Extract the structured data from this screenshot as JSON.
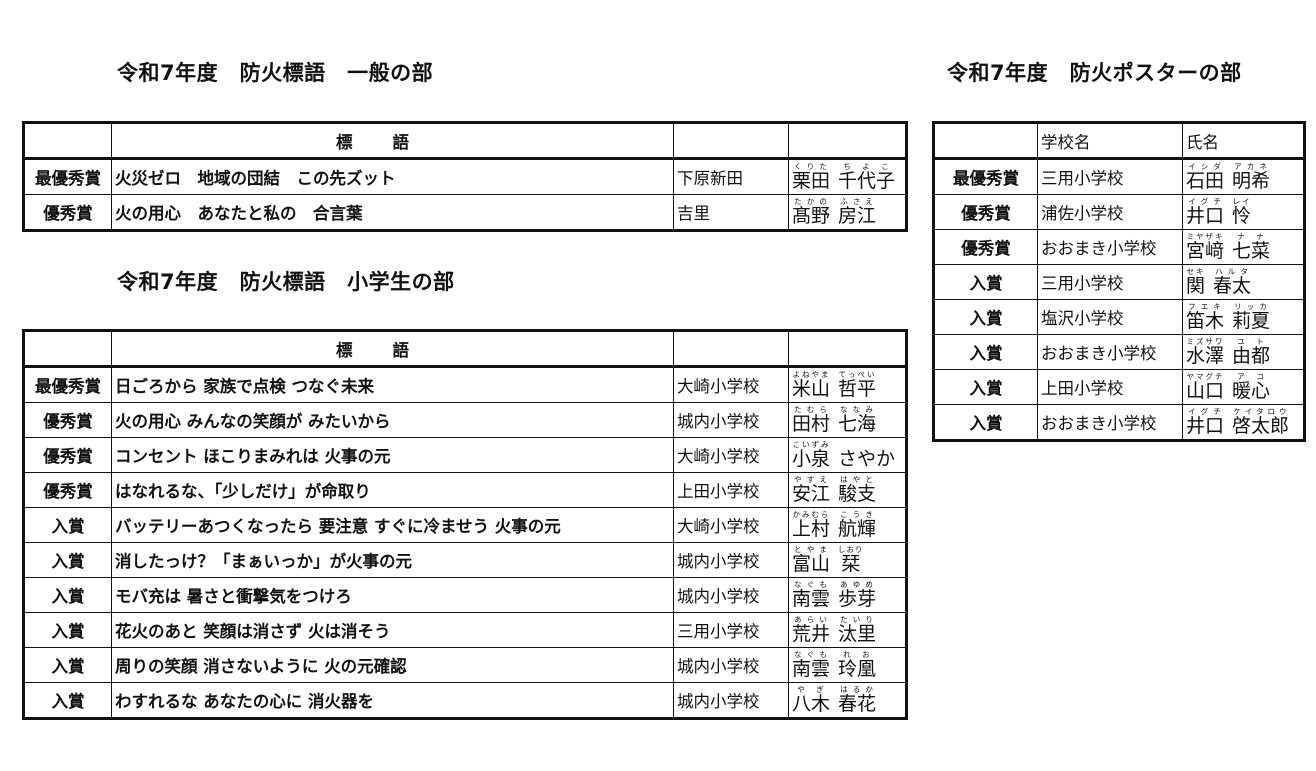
{
  "general": {
    "title": "令和7年度　防火標語　一般の部",
    "header": {
      "award": "",
      "slogan": "標語",
      "place": "",
      "name": ""
    },
    "rows": [
      {
        "award": "最優秀賞",
        "slogan": "火災ゼロ　地域の団結　この先ズット",
        "place": "下原新田",
        "surname": "栗田",
        "surname_ruby": "くりた",
        "given": "千代子",
        "given_ruby": "ちよこ"
      },
      {
        "award": "優秀賞",
        "slogan": "火の用心　あなたと私の　合言葉",
        "place": "吉里",
        "surname": "髙野",
        "surname_ruby": "たかの",
        "given": "房江",
        "given_ruby": "ふさえ"
      }
    ]
  },
  "elementary": {
    "title": "令和7年度　防火標語　小学生の部",
    "header": {
      "award": "",
      "slogan": "標語",
      "place": "",
      "name": ""
    },
    "rows": [
      {
        "award": "最優秀賞",
        "slogan": "日ごろから  家族で点検  つなぐ未来",
        "place": "大崎小学校",
        "surname": "米山",
        "surname_ruby": "よねやま",
        "given": "哲平",
        "given_ruby": "てっぺい"
      },
      {
        "award": "優秀賞",
        "slogan": "火の用心  みんなの笑顔が  みたいから",
        "place": "城内小学校",
        "surname": "田村",
        "surname_ruby": "たむら",
        "given": "七海",
        "given_ruby": "ななみ"
      },
      {
        "award": "優秀賞",
        "slogan": "コンセント  ほこりまみれは  火事の元",
        "place": "大崎小学校",
        "surname": "小泉",
        "surname_ruby": "こいずみ",
        "given": "さやか",
        "given_ruby": ""
      },
      {
        "award": "優秀賞",
        "slogan": "はなれるな、「少しだけ」が命取り",
        "place": "上田小学校",
        "surname": "安江",
        "surname_ruby": "やすえ",
        "given": "駿支",
        "given_ruby": "はやと"
      },
      {
        "award": "入賞",
        "slogan": "バッテリーあつくなったら  要注意  すぐに冷ませう  火事の元",
        "place": "大崎小学校",
        "surname": "上村",
        "surname_ruby": "かみむら",
        "given": "航輝",
        "given_ruby": "こうき"
      },
      {
        "award": "入賞",
        "slogan": "消したっけ？「まぁいっか」が火事の元",
        "place": "城内小学校",
        "surname": "富山",
        "surname_ruby": "とやま",
        "given": "栞",
        "given_ruby": "しおり"
      },
      {
        "award": "入賞",
        "slogan": "モバ充は  暑さと衝撃気をつけろ",
        "place": "城内小学校",
        "surname": "南雲",
        "surname_ruby": "なぐも",
        "given": "歩芽",
        "given_ruby": "あゆめ"
      },
      {
        "award": "入賞",
        "slogan": "花火のあと  笑顔は消さず  火は消そう",
        "place": "三用小学校",
        "surname": "荒井",
        "surname_ruby": "あらい",
        "given": "汰里",
        "given_ruby": "たいり"
      },
      {
        "award": "入賞",
        "slogan": "周りの笑顔  消さないように  火の元確認",
        "place": "城内小学校",
        "surname": "南雲",
        "surname_ruby": "なぐも",
        "given": "玲凰",
        "given_ruby": "れお"
      },
      {
        "award": "入賞",
        "slogan": "わすれるな  あなたの心に  消火器を",
        "place": "城内小学校",
        "surname": "八木",
        "surname_ruby": "やぎ",
        "given": "春花",
        "given_ruby": "はるか"
      }
    ]
  },
  "poster": {
    "title": "令和7年度　防火ポスターの部",
    "header": {
      "award": "",
      "school": "学校名",
      "name": "氏名"
    },
    "rows": [
      {
        "award": "最優秀賞",
        "school": "三用小学校",
        "surname": "石田",
        "surname_ruby": "イシダ",
        "given": "明希",
        "given_ruby": "アカネ"
      },
      {
        "award": "優秀賞",
        "school": "浦佐小学校",
        "surname": "井口",
        "surname_ruby": "イグチ",
        "given": "怜",
        "given_ruby": "レイ"
      },
      {
        "award": "優秀賞",
        "school": "おおまき小学校",
        "surname": "宮﨑",
        "surname_ruby": "ミヤザキ",
        "given": "七菜",
        "given_ruby": "ナナ"
      },
      {
        "award": "入賞",
        "school": "三用小学校",
        "surname": "関",
        "surname_ruby": "セキ",
        "given": "春太",
        "given_ruby": "ハルタ"
      },
      {
        "award": "入賞",
        "school": "塩沢小学校",
        "surname": "笛木",
        "surname_ruby": "フエキ",
        "given": "莉夏",
        "given_ruby": "リッカ"
      },
      {
        "award": "入賞",
        "school": "おおまき小学校",
        "surname": "水澤",
        "surname_ruby": "ミズサワ",
        "given": "由都",
        "given_ruby": "ユト"
      },
      {
        "award": "入賞",
        "school": "上田小学校",
        "surname": "山口",
        "surname_ruby": "ヤマグチ",
        "given": "暖心",
        "given_ruby": "アコ"
      },
      {
        "award": "入賞",
        "school": "おおまき小学校",
        "surname": "井口",
        "surname_ruby": "イグチ",
        "given": "啓太郎",
        "given_ruby": "ケイタロウ"
      }
    ]
  }
}
